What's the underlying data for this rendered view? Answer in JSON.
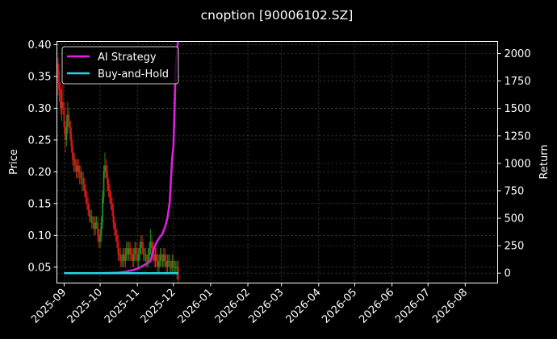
{
  "chart_data": {
    "type": "line",
    "title": "cnoption [90006102.SZ]",
    "xlabel": "",
    "ylabel": "Price",
    "ylabel_right": "Return",
    "ylim": [
      0.025,
      0.405
    ],
    "ylim_right": [
      -90,
      2110
    ],
    "grid": true,
    "legend_position": "upper left",
    "x_ticks": [
      "2025-09",
      "2025-10",
      "2025-11",
      "2025-12",
      "2026-01",
      "2026-02",
      "2026-03",
      "2026-04",
      "2026-05",
      "2026-06",
      "2026-07",
      "2026-08"
    ],
    "y_ticks_left": [
      "0.05",
      "0.10",
      "0.15",
      "0.20",
      "0.25",
      "0.30",
      "0.35",
      "0.40"
    ],
    "y_ticks_right": [
      "0",
      "250",
      "500",
      "750",
      "1000",
      "1250",
      "1500",
      "1750",
      "2000"
    ],
    "xlim_days": [
      -6,
      361
    ],
    "colors": {
      "background": "#000000",
      "frame": "#ffffff",
      "grid": "#4d4d4d",
      "ai_strategy": "#e41ee4",
      "buy_and_hold": "#22d8e6",
      "candle_up": "#1fa01f",
      "candle_down": "#f01a1a"
    },
    "series": [
      {
        "name": "AI Strategy",
        "axis": "right",
        "x_days": [
          0,
          30,
          45,
          52,
          58,
          62,
          66,
          70,
          72,
          74,
          76,
          78,
          80,
          82,
          84,
          86,
          88,
          89,
          90,
          91,
          92,
          93,
          95
        ],
        "values": [
          0,
          0,
          5,
          15,
          30,
          45,
          70,
          95,
          110,
          200,
          260,
          300,
          330,
          360,
          420,
          500,
          650,
          850,
          1050,
          1150,
          1500,
          1900,
          2150
        ]
      },
      {
        "name": "Buy-and-Hold",
        "axis": "right",
        "x_days": [
          0,
          95
        ],
        "values": [
          0,
          0
        ]
      }
    ],
    "candles": {
      "axis": "left",
      "x_days": [
        -5,
        -4,
        -3,
        -2,
        -1,
        0,
        1,
        2,
        3,
        4,
        5,
        6,
        7,
        8,
        9,
        10,
        11,
        12,
        13,
        14,
        15,
        16,
        17,
        18,
        19,
        20,
        21,
        22,
        23,
        24,
        25,
        26,
        27,
        28,
        29,
        30,
        31,
        32,
        33,
        34,
        35,
        36,
        37,
        38,
        39,
        40,
        41,
        42,
        43,
        44,
        45,
        46,
        47,
        48,
        49,
        50,
        51,
        52,
        53,
        54,
        55,
        56,
        57,
        58,
        59,
        60,
        61,
        62,
        63,
        64,
        65,
        66,
        67,
        68,
        69,
        70,
        71,
        72,
        73,
        74,
        75,
        76,
        77,
        78,
        79,
        80,
        81,
        82,
        83,
        84,
        85,
        86,
        87,
        88,
        89,
        90,
        91,
        92,
        93,
        94,
        95
      ],
      "open": [
        0.37,
        0.34,
        0.33,
        0.3,
        0.31,
        0.3,
        0.27,
        0.25,
        0.27,
        0.29,
        0.28,
        0.26,
        0.24,
        0.22,
        0.22,
        0.21,
        0.2,
        0.21,
        0.2,
        0.2,
        0.19,
        0.19,
        0.18,
        0.17,
        0.16,
        0.15,
        0.14,
        0.13,
        0.13,
        0.12,
        0.12,
        0.11,
        0.12,
        0.12,
        0.1,
        0.09,
        0.1,
        0.12,
        0.16,
        0.2,
        0.21,
        0.2,
        0.18,
        0.17,
        0.16,
        0.15,
        0.14,
        0.12,
        0.11,
        0.1,
        0.09,
        0.07,
        0.07,
        0.06,
        0.06,
        0.07,
        0.06,
        0.07,
        0.08,
        0.07,
        0.08,
        0.07,
        0.07,
        0.06,
        0.07,
        0.08,
        0.07,
        0.06,
        0.07,
        0.08,
        0.09,
        0.08,
        0.07,
        0.07,
        0.06,
        0.06,
        0.07,
        0.08,
        0.09,
        0.08,
        0.07,
        0.06,
        0.07,
        0.06,
        0.05,
        0.06,
        0.07,
        0.06,
        0.06,
        0.07,
        0.06,
        0.05,
        0.06,
        0.06,
        0.05,
        0.05,
        0.06,
        0.05,
        0.05,
        0.05,
        0.05
      ],
      "close": [
        0.34,
        0.33,
        0.3,
        0.31,
        0.3,
        0.27,
        0.25,
        0.27,
        0.29,
        0.28,
        0.26,
        0.24,
        0.22,
        0.22,
        0.21,
        0.2,
        0.21,
        0.2,
        0.2,
        0.19,
        0.19,
        0.18,
        0.17,
        0.16,
        0.15,
        0.14,
        0.13,
        0.13,
        0.12,
        0.12,
        0.11,
        0.12,
        0.12,
        0.1,
        0.09,
        0.1,
        0.12,
        0.16,
        0.2,
        0.21,
        0.2,
        0.18,
        0.17,
        0.16,
        0.15,
        0.14,
        0.12,
        0.11,
        0.1,
        0.09,
        0.07,
        0.07,
        0.06,
        0.06,
        0.07,
        0.06,
        0.07,
        0.08,
        0.07,
        0.08,
        0.07,
        0.07,
        0.06,
        0.07,
        0.08,
        0.07,
        0.06,
        0.07,
        0.08,
        0.09,
        0.08,
        0.07,
        0.07,
        0.06,
        0.06,
        0.07,
        0.08,
        0.09,
        0.08,
        0.07,
        0.06,
        0.07,
        0.06,
        0.05,
        0.06,
        0.07,
        0.06,
        0.06,
        0.07,
        0.06,
        0.05,
        0.06,
        0.06,
        0.05,
        0.05,
        0.06,
        0.05,
        0.05,
        0.05,
        0.05,
        0.03
      ],
      "high": [
        0.38,
        0.36,
        0.34,
        0.33,
        0.34,
        0.31,
        0.28,
        0.29,
        0.31,
        0.3,
        0.28,
        0.27,
        0.25,
        0.23,
        0.23,
        0.22,
        0.22,
        0.22,
        0.21,
        0.21,
        0.2,
        0.2,
        0.19,
        0.18,
        0.17,
        0.16,
        0.15,
        0.14,
        0.14,
        0.13,
        0.13,
        0.13,
        0.13,
        0.13,
        0.11,
        0.11,
        0.13,
        0.17,
        0.21,
        0.23,
        0.22,
        0.21,
        0.19,
        0.18,
        0.17,
        0.16,
        0.15,
        0.13,
        0.12,
        0.11,
        0.1,
        0.08,
        0.08,
        0.07,
        0.08,
        0.08,
        0.08,
        0.09,
        0.09,
        0.09,
        0.09,
        0.08,
        0.08,
        0.08,
        0.09,
        0.09,
        0.08,
        0.08,
        0.09,
        0.1,
        0.1,
        0.09,
        0.08,
        0.08,
        0.07,
        0.08,
        0.09,
        0.11,
        0.1,
        0.09,
        0.08,
        0.08,
        0.08,
        0.07,
        0.07,
        0.08,
        0.08,
        0.07,
        0.08,
        0.08,
        0.07,
        0.07,
        0.07,
        0.07,
        0.06,
        0.07,
        0.07,
        0.06,
        0.06,
        0.06,
        0.06
      ],
      "low": [
        0.32,
        0.31,
        0.29,
        0.28,
        0.29,
        0.26,
        0.23,
        0.24,
        0.26,
        0.27,
        0.25,
        0.23,
        0.21,
        0.2,
        0.2,
        0.19,
        0.19,
        0.19,
        0.18,
        0.18,
        0.17,
        0.17,
        0.16,
        0.15,
        0.14,
        0.13,
        0.12,
        0.12,
        0.11,
        0.11,
        0.1,
        0.1,
        0.11,
        0.09,
        0.08,
        0.08,
        0.09,
        0.11,
        0.15,
        0.19,
        0.19,
        0.17,
        0.16,
        0.15,
        0.14,
        0.13,
        0.11,
        0.1,
        0.09,
        0.08,
        0.06,
        0.06,
        0.05,
        0.05,
        0.05,
        0.05,
        0.05,
        0.06,
        0.06,
        0.06,
        0.06,
        0.06,
        0.05,
        0.05,
        0.06,
        0.06,
        0.05,
        0.05,
        0.06,
        0.07,
        0.07,
        0.06,
        0.06,
        0.05,
        0.05,
        0.05,
        0.06,
        0.07,
        0.07,
        0.06,
        0.05,
        0.05,
        0.05,
        0.04,
        0.04,
        0.05,
        0.05,
        0.05,
        0.05,
        0.05,
        0.04,
        0.04,
        0.05,
        0.04,
        0.04,
        0.04,
        0.04,
        0.04,
        0.04,
        0.03,
        0.025
      ]
    }
  }
}
